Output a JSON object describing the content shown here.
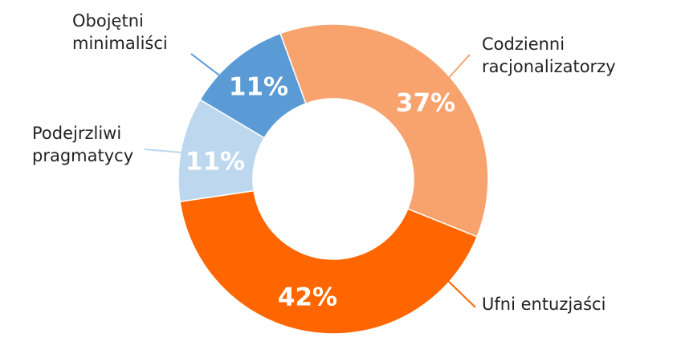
{
  "chart_data": {
    "type": "donut",
    "categories": [
      "Codzienni racjonalizatorzy",
      "Ufni entuzjaści",
      "Podejrzliwi pragmatycy",
      "Obojętni minimaliści"
    ],
    "values": [
      37,
      42,
      11,
      11
    ],
    "value_labels": [
      "37%",
      "42%",
      "11%",
      "11%"
    ],
    "colors": [
      "#f8a36d",
      "#ff6600",
      "#bdd7ee",
      "#5b9bd5"
    ]
  }
}
